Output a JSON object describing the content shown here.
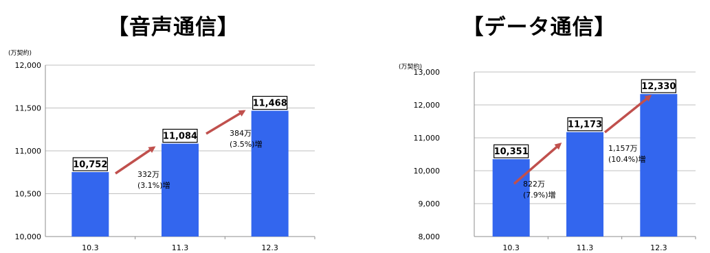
{
  "chart_data": [
    {
      "type": "bar",
      "title": "【音声通信】",
      "unit": "(万契約)",
      "categories": [
        "10.3",
        "11.3",
        "12.3"
      ],
      "values": [
        10752,
        11084,
        11468
      ],
      "value_labels": [
        "10,752",
        "11,084",
        "11,468"
      ],
      "ylim": [
        10000,
        12000
      ],
      "yticks": [
        10000,
        10500,
        11000,
        11500,
        12000
      ],
      "ytick_labels": [
        "10,000",
        "10,500",
        "11,000",
        "11,500",
        "12,000"
      ],
      "bar_color": "#3366ee",
      "arrow_color": "#c0504d",
      "annotations": [
        {
          "line1": "332万",
          "line2": "(3.1%)増"
        },
        {
          "line1": "384万",
          "line2": "(3.5%)増"
        }
      ]
    },
    {
      "type": "bar",
      "title": "【データ通信】",
      "unit": "(万契約)",
      "categories": [
        "10.3",
        "11.3",
        "12.3"
      ],
      "values": [
        10351,
        11173,
        12330
      ],
      "value_labels": [
        "10,351",
        "11,173",
        "12,330"
      ],
      "ylim": [
        8000,
        13000
      ],
      "yticks": [
        8000,
        9000,
        10000,
        11000,
        12000,
        13000
      ],
      "ytick_labels": [
        "8,000",
        "9,000",
        "10,000",
        "11,000",
        "12,000",
        "13,000"
      ],
      "bar_color": "#3366ee",
      "arrow_color": "#c0504d",
      "annotations": [
        {
          "line1": "822万",
          "line2": "(7.9%)増"
        },
        {
          "line1": "1,157万",
          "line2": "(10.4%)増"
        }
      ]
    }
  ]
}
